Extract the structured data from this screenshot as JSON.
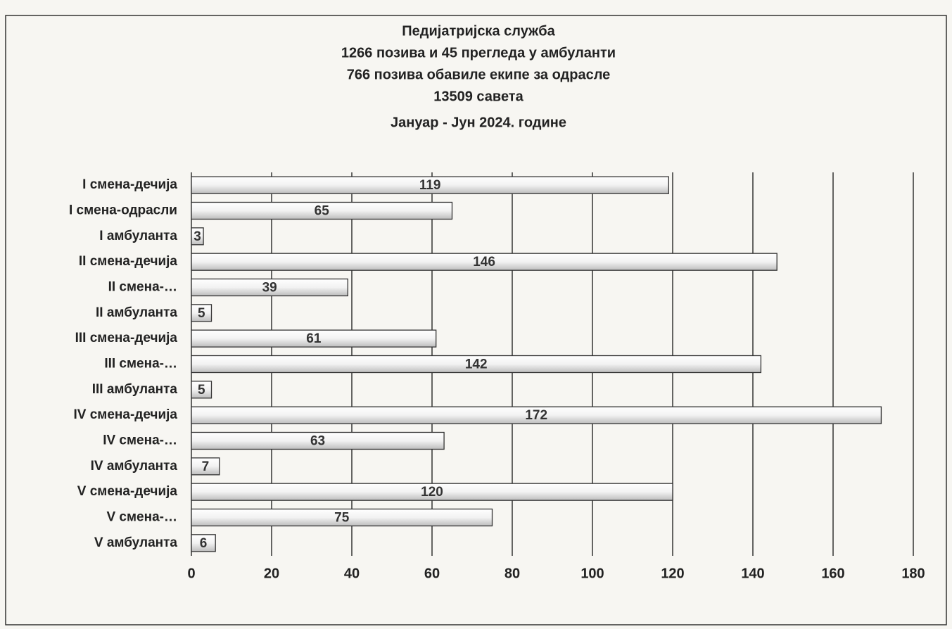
{
  "chart_data": {
    "type": "barh",
    "title": [
      "Педијатријска служба",
      "1266 позива и 45 прегледа у амбуланти",
      "766 позива обавиле екипе за одрасле",
      "13509 савета",
      "Јануар - Јун 2024. године"
    ],
    "categories": [
      "I смена-дечија",
      "I смена-одрасли",
      "I амбуланта",
      "II смена-дечија",
      "II смена-…",
      "II амбуланта",
      "III смена-дечија",
      "III смена-…",
      "III амбуланта",
      "IV смена-дечија",
      "IV смена-…",
      "IV амбуланта",
      "V смена-дечија",
      "V смена-…",
      "V амбуланта"
    ],
    "values": [
      119,
      65,
      3,
      146,
      39,
      5,
      61,
      142,
      5,
      172,
      63,
      7,
      120,
      75,
      6
    ],
    "color": "#bdbdbd",
    "xlim": [
      0,
      180
    ],
    "xticks": [
      0,
      20,
      40,
      60,
      80,
      100,
      120,
      140,
      160,
      180
    ],
    "grid": true
  }
}
